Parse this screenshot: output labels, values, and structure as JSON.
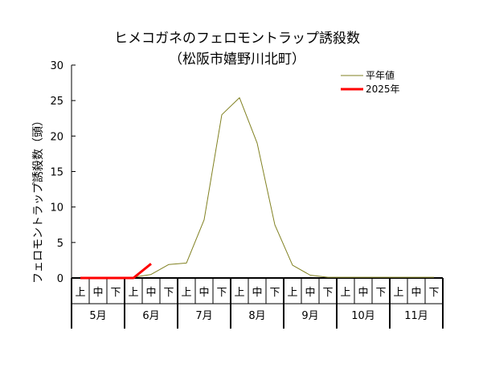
{
  "chart_data": {
    "type": "line",
    "title": "ヒメコガネのフェロモントラップ誘殺数",
    "subtitle": "（松阪市嬉野川北町）",
    "ylabel": "フェロモントラップ誘殺数（頭）",
    "ylim": [
      0,
      30
    ],
    "yticks": [
      0,
      5,
      10,
      15,
      20,
      25,
      30
    ],
    "periods": [
      "上",
      "中",
      "下",
      "上",
      "中",
      "下",
      "上",
      "中",
      "下",
      "上",
      "中",
      "下",
      "上",
      "中",
      "下",
      "上",
      "中",
      "下",
      "上",
      "中",
      "下"
    ],
    "months": [
      "5月",
      "6月",
      "7月",
      "8月",
      "9月",
      "10月",
      "11月"
    ],
    "legend_position": "top-right",
    "series": [
      {
        "name": "平年値",
        "color": "#808020",
        "values": [
          0,
          0,
          0,
          0.1,
          0.5,
          1.9,
          2.1,
          8.2,
          23.0,
          25.4,
          19.0,
          7.5,
          1.8,
          0.4,
          0.1,
          0.1,
          0.1,
          0.1,
          0.1,
          0.1,
          0.1
        ]
      },
      {
        "name": "2025年",
        "color": "#ff0000",
        "values": [
          0,
          0,
          0,
          0,
          2.0
        ]
      }
    ]
  }
}
